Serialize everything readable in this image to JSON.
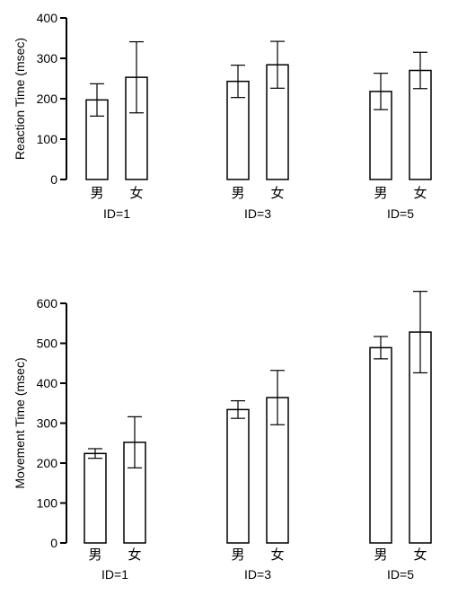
{
  "chart_data": [
    {
      "type": "bar",
      "ylabel": "Reaction Time (msec)",
      "ylim": [
        0,
        400
      ],
      "yticks": [
        0,
        100,
        200,
        300,
        400
      ],
      "categories": [
        "男",
        "女"
      ],
      "groups": [
        {
          "label": "ID=1",
          "values": [
            197,
            253
          ],
          "errors": [
            40,
            88
          ]
        },
        {
          "label": "ID=3",
          "values": [
            243,
            284
          ],
          "errors": [
            40,
            58
          ]
        },
        {
          "label": "ID=5",
          "values": [
            218,
            270
          ],
          "errors": [
            45,
            45
          ]
        }
      ]
    },
    {
      "type": "bar",
      "ylabel": "Movement Time (msec)",
      "ylim": [
        0,
        600
      ],
      "yticks": [
        0,
        100,
        200,
        300,
        400,
        500,
        600
      ],
      "categories": [
        "男",
        "女"
      ],
      "groups": [
        {
          "label": "ID=1",
          "values": [
            224,
            252
          ],
          "errors": [
            12,
            64
          ]
        },
        {
          "label": "ID=3",
          "values": [
            334,
            364
          ],
          "errors": [
            22,
            68
          ]
        },
        {
          "label": "ID=5",
          "values": [
            489,
            528
          ],
          "errors": [
            28,
            102
          ]
        }
      ]
    }
  ]
}
